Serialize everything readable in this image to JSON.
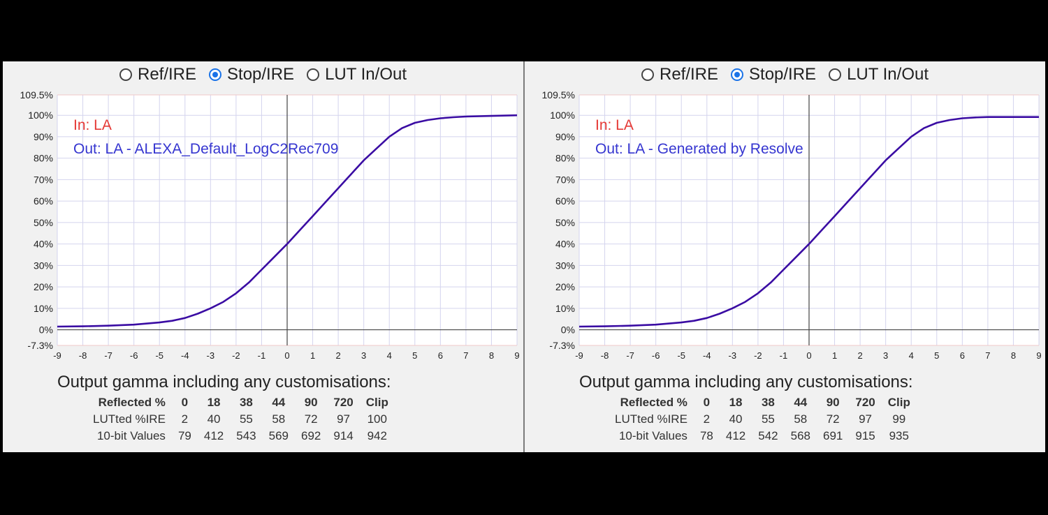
{
  "panels": [
    {
      "radios": [
        {
          "label": "Ref/IRE",
          "checked": false
        },
        {
          "label": "Stop/IRE",
          "checked": true
        },
        {
          "label": "LUT In/Out",
          "checked": false
        }
      ],
      "chart_data": {
        "type": "line",
        "in_label": "In: LA",
        "out_label": "Out: LA - ALEXA_Default_LogC2Rec709",
        "in_color": "#e53935",
        "out_color": "#3535d0",
        "line_color": "#3a0ca3",
        "xlim": [
          -9,
          9
        ],
        "ylim": [
          -7.3,
          109.5
        ],
        "xticks": [
          "-9",
          "-8",
          "-7",
          "-6",
          "-5",
          "-4",
          "-3",
          "-2",
          "-1",
          "0",
          "1",
          "2",
          "3",
          "4",
          "5",
          "6",
          "7",
          "8",
          "9"
        ],
        "yticks": [
          "-7.3%",
          "0%",
          "10%",
          "20%",
          "30%",
          "40%",
          "50%",
          "60%",
          "70%",
          "80%",
          "90%",
          "100%",
          "109.5%"
        ],
        "grid": true,
        "series": [
          {
            "x": [
              -9,
              -8,
              -7,
              -6,
              -5,
              -4.5,
              -4,
              -3.5,
              -3,
              -2.5,
              -2,
              -1.5,
              -1,
              -0.5,
              0,
              0.5,
              1,
              1.5,
              2,
              2.5,
              3,
              3.5,
              4,
              4.5,
              5,
              5.5,
              6,
              6.5,
              7,
              8,
              9
            ],
            "y": [
              1.5,
              1.6,
              1.9,
              2.4,
              3.4,
              4.2,
              5.5,
              7.5,
              10,
              13,
              17,
              22,
              28,
              34,
              40,
              46.5,
              53,
              59.5,
              66,
              72.5,
              79,
              84.5,
              90,
              94,
              96.5,
              97.8,
              98.6,
              99.1,
              99.4,
              99.7,
              100
            ]
          }
        ]
      },
      "gamma_title": "Output gamma including any customisations:",
      "table": {
        "header": [
          "Reflected %",
          "0",
          "18",
          "38",
          "44",
          "90",
          "720",
          "Clip"
        ],
        "rows": [
          [
            "LUTted %IRE",
            "2",
            "40",
            "55",
            "58",
            "72",
            "97",
            "100"
          ],
          [
            "10-bit Values",
            "79",
            "412",
            "543",
            "569",
            "692",
            "914",
            "942"
          ]
        ]
      }
    },
    {
      "radios": [
        {
          "label": "Ref/IRE",
          "checked": false
        },
        {
          "label": "Stop/IRE",
          "checked": true
        },
        {
          "label": "LUT In/Out",
          "checked": false
        }
      ],
      "chart_data": {
        "type": "line",
        "in_label": "In: LA",
        "out_label": "Out: LA - Generated by Resolve",
        "in_color": "#e53935",
        "out_color": "#3535d0",
        "line_color": "#3a0ca3",
        "xlim": [
          -9,
          9
        ],
        "ylim": [
          -7.3,
          109.5
        ],
        "xticks": [
          "-9",
          "-8",
          "-7",
          "-6",
          "-5",
          "-4",
          "-3",
          "-2",
          "-1",
          "0",
          "1",
          "2",
          "3",
          "4",
          "5",
          "6",
          "7",
          "8",
          "9"
        ],
        "yticks": [
          "-7.3%",
          "0%",
          "10%",
          "20%",
          "30%",
          "40%",
          "50%",
          "60%",
          "70%",
          "80%",
          "90%",
          "100%",
          "109.5%"
        ],
        "grid": true,
        "series": [
          {
            "x": [
              -9,
              -8,
              -7,
              -6,
              -5,
              -4.5,
              -4,
              -3.5,
              -3,
              -2.5,
              -2,
              -1.5,
              -1,
              -0.5,
              0,
              0.5,
              1,
              1.5,
              2,
              2.5,
              3,
              3.5,
              4,
              4.5,
              5,
              5.5,
              6,
              6.5,
              7,
              8,
              9
            ],
            "y": [
              1.5,
              1.6,
              1.9,
              2.4,
              3.4,
              4.2,
              5.5,
              7.5,
              10,
              13,
              17,
              22,
              28,
              34,
              40,
              46.5,
              53,
              59.5,
              66,
              72.5,
              79,
              84.5,
              90,
              94,
              96.5,
              97.8,
              98.6,
              99.0,
              99.2,
              99.2,
              99.2
            ]
          }
        ]
      },
      "gamma_title": "Output gamma including any customisations:",
      "table": {
        "header": [
          "Reflected %",
          "0",
          "18",
          "38",
          "44",
          "90",
          "720",
          "Clip"
        ],
        "rows": [
          [
            "LUTted %IRE",
            "2",
            "40",
            "55",
            "58",
            "72",
            "97",
            "99"
          ],
          [
            "10-bit Values",
            "78",
            "412",
            "542",
            "568",
            "691",
            "915",
            "935"
          ]
        ]
      }
    }
  ]
}
